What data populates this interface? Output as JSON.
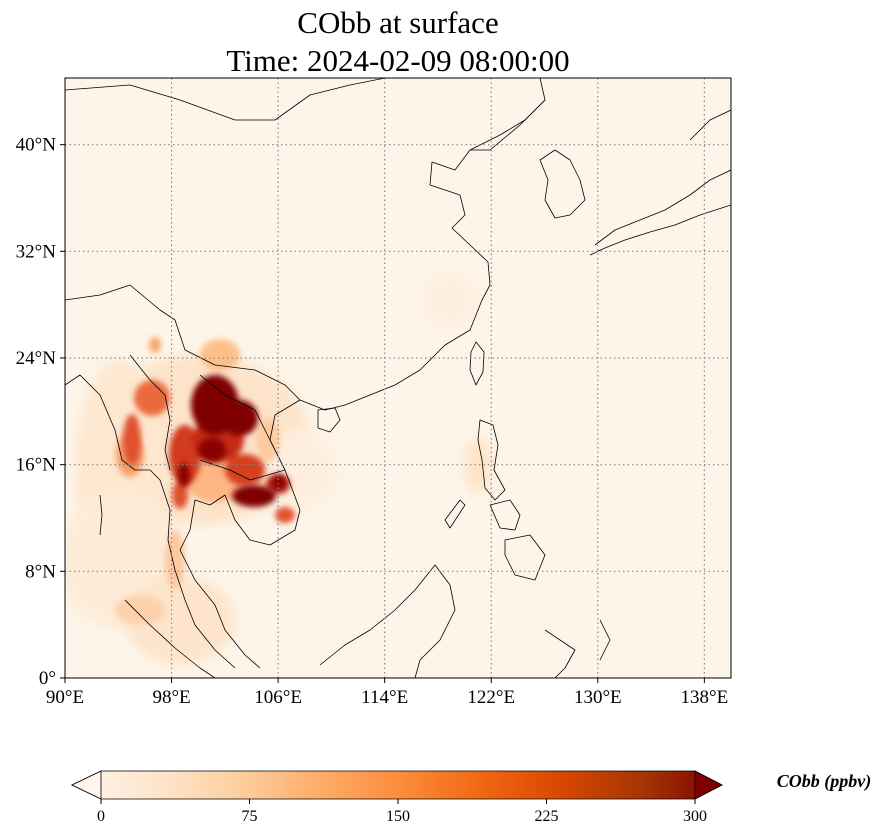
{
  "title": {
    "line1": "CObb at surface",
    "line2": "Time: 2024-02-09 08:00:00"
  },
  "map": {
    "lon_range": [
      90,
      140
    ],
    "lat_range": [
      0,
      45
    ],
    "lon_ticks": [
      {
        "value": 90,
        "label": "90°E"
      },
      {
        "value": 98,
        "label": "98°E"
      },
      {
        "value": 106,
        "label": "106°E"
      },
      {
        "value": 114,
        "label": "114°E"
      },
      {
        "value": 122,
        "label": "122°E"
      },
      {
        "value": 130,
        "label": "130°E"
      },
      {
        "value": 138,
        "label": "138°E"
      }
    ],
    "lat_ticks": [
      {
        "value": 0,
        "label": "0°"
      },
      {
        "value": 8,
        "label": "8°N"
      },
      {
        "value": 16,
        "label": "16°N"
      },
      {
        "value": 24,
        "label": "24°N"
      },
      {
        "value": 32,
        "label": "32°N"
      },
      {
        "value": 40,
        "label": "40°N"
      }
    ],
    "colors": {
      "background": "#fdf5e9",
      "gridline": "#888888",
      "coastline": "#000000"
    },
    "concentration_hotspots": [
      {
        "region": "northern-laos",
        "lon": 101.8,
        "lat": 20.2,
        "level": "very-high"
      },
      {
        "region": "northern-laos-east",
        "lon": 103.8,
        "lat": 19.6,
        "level": "very-high"
      },
      {
        "region": "central-laos",
        "lon": 102.6,
        "lat": 17.8,
        "level": "high"
      },
      {
        "region": "northern-thailand",
        "lon": 99.4,
        "lat": 17.5,
        "level": "high"
      },
      {
        "region": "cambodia-tonle-sap",
        "lon": 104.0,
        "lat": 13.4,
        "level": "very-high"
      },
      {
        "region": "eastern-cambodia",
        "lon": 105.6,
        "lat": 14.6,
        "level": "high"
      },
      {
        "region": "myanmar-west",
        "lon": 94.9,
        "lat": 18.5,
        "level": "high"
      },
      {
        "region": "myanmar-central",
        "lon": 96.5,
        "lat": 20.5,
        "level": "high"
      },
      {
        "region": "yunnan",
        "lon": 101.0,
        "lat": 23.2,
        "level": "moderate"
      },
      {
        "region": "thailand-central",
        "lon": 101.5,
        "lat": 15.2,
        "level": "moderate"
      },
      {
        "region": "philippines-luzon",
        "lon": 121.0,
        "lat": 16.0,
        "level": "low"
      }
    ]
  },
  "colorbar": {
    "label": "CObb (ppbv)",
    "vmin": 0,
    "vmax": 300,
    "ticks": [
      {
        "value": 0,
        "label": "0"
      },
      {
        "value": 75,
        "label": "75"
      },
      {
        "value": 150,
        "label": "150"
      },
      {
        "value": 225,
        "label": "225"
      },
      {
        "value": 300,
        "label": "300"
      }
    ],
    "colormap": [
      "#fff5eb",
      "#fee6ce",
      "#fdd0a2",
      "#fdae6b",
      "#fd8d3c",
      "#f16913",
      "#d94801",
      "#a63603",
      "#7f0000"
    ]
  }
}
